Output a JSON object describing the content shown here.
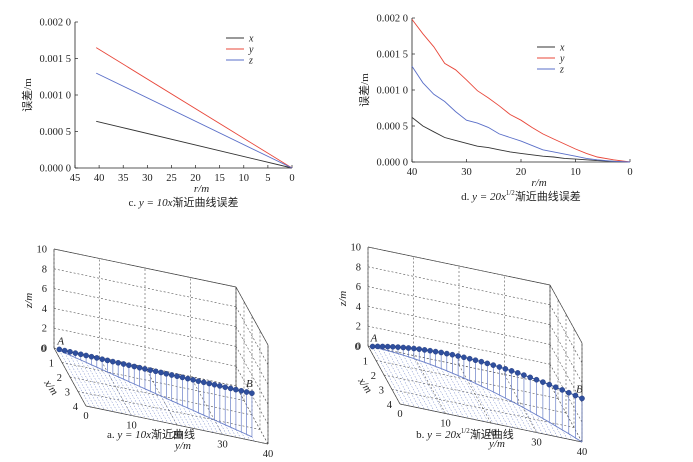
{
  "chart_data": [
    {
      "id": "c",
      "type": "line",
      "caption": "c. y = 10x 渐近曲线误差",
      "caption_prefix": "c. ",
      "caption_formula": "y = 10x",
      "caption_suffix": "渐近曲线误差",
      "xlabel": "r/m",
      "ylabel": "误差/m",
      "xlim": [
        45,
        0
      ],
      "ylim": [
        0,
        0.002
      ],
      "xticks": [
        "45",
        "40",
        "35",
        "30",
        "25",
        "20",
        "15",
        "10",
        "5",
        "0"
      ],
      "yticks": [
        "0.000 0",
        "0.000 5",
        "0.001 0",
        "0.001 5",
        "0.002 0"
      ],
      "legend": [
        "x",
        "y",
        "z"
      ],
      "series": [
        {
          "name": "x",
          "color": "#333333",
          "points": [
            [
              40.6,
              0.00064
            ],
            [
              0,
              0.0
            ]
          ]
        },
        {
          "name": "y",
          "color": "#e8473a",
          "points": [
            [
              40.6,
              0.00165
            ],
            [
              0,
              0.0
            ]
          ]
        },
        {
          "name": "z",
          "color": "#5a6fc8",
          "points": [
            [
              40.6,
              0.0013
            ],
            [
              0,
              0.0
            ]
          ]
        }
      ]
    },
    {
      "id": "d",
      "type": "line",
      "caption": "d. y = 20x^(1/2) 渐近曲线误差",
      "caption_prefix": "d. ",
      "caption_formula": "y = 20x",
      "caption_exponent": "1/2",
      "caption_suffix": "渐近曲线误差",
      "xlabel": "r/m",
      "ylabel": "误差/m",
      "xlim": [
        40,
        0
      ],
      "ylim": [
        0,
        0.002
      ],
      "xticks": [
        "40",
        "30",
        "20",
        "10",
        "0"
      ],
      "yticks": [
        "0.000 0",
        "0.000 5",
        "0.001 0",
        "0.001 5",
        "0.002 0"
      ],
      "legend": [
        "x",
        "y",
        "z"
      ],
      "series": [
        {
          "name": "x",
          "color": "#333333",
          "points": [
            [
              40,
              0.00062
            ],
            [
              38,
              0.0005
            ],
            [
              36,
              0.00042
            ],
            [
              34,
              0.00034
            ],
            [
              32,
              0.0003
            ],
            [
              30,
              0.00026
            ],
            [
              28,
              0.00022
            ],
            [
              26,
              0.0002
            ],
            [
              24,
              0.00017
            ],
            [
              22,
              0.00014
            ],
            [
              20,
              0.00012
            ],
            [
              18,
              0.0001
            ],
            [
              16,
              8e-05
            ],
            [
              14,
              7e-05
            ],
            [
              12,
              5e-05
            ],
            [
              10,
              4e-05
            ],
            [
              8,
              3e-05
            ],
            [
              6,
              2e-05
            ],
            [
              3,
              1e-05
            ],
            [
              0,
              0.0
            ]
          ]
        },
        {
          "name": "y",
          "color": "#e8473a",
          "points": [
            [
              40,
              0.00198
            ],
            [
              38,
              0.00178
            ],
            [
              36,
              0.0016
            ],
            [
              34,
              0.00137
            ],
            [
              32,
              0.00128
            ],
            [
              30,
              0.00114
            ],
            [
              28,
              0.00099
            ],
            [
              26,
              0.00089
            ],
            [
              24,
              0.00078
            ],
            [
              22,
              0.00066
            ],
            [
              20,
              0.00058
            ],
            [
              18,
              0.00048
            ],
            [
              16,
              0.00039
            ],
            [
              14,
              0.00032
            ],
            [
              12,
              0.00025
            ],
            [
              10,
              0.00018
            ],
            [
              8,
              0.00012
            ],
            [
              6,
              7e-05
            ],
            [
              3,
              3e-05
            ],
            [
              0,
              0.0
            ]
          ]
        },
        {
          "name": "z",
          "color": "#5a6fc8",
          "points": [
            [
              40,
              0.00133
            ],
            [
              38,
              0.0011
            ],
            [
              36,
              0.00094
            ],
            [
              34,
              0.00084
            ],
            [
              32,
              0.0007
            ],
            [
              30,
              0.00058
            ],
            [
              28,
              0.00054
            ],
            [
              26,
              0.00048
            ],
            [
              24,
              0.00039
            ],
            [
              22,
              0.00034
            ],
            [
              20,
              0.00029
            ],
            [
              18,
              0.00023
            ],
            [
              16,
              0.00017
            ],
            [
              14,
              0.00014
            ],
            [
              12,
              0.00011
            ],
            [
              10,
              8e-05
            ],
            [
              8,
              5e-05
            ],
            [
              6,
              3e-05
            ],
            [
              3,
              1e-05
            ],
            [
              0,
              0.0
            ]
          ]
        }
      ]
    },
    {
      "id": "a",
      "type": "scatter3d",
      "caption": "a. y = 10x 渐近曲线",
      "caption_prefix": "a. ",
      "caption_formula": "y = 10x",
      "caption_suffix": "渐近曲线",
      "xlabel": "x/m",
      "ylabel": "y/m",
      "zlabel": "z/m",
      "xlim": [
        0,
        4
      ],
      "ylim": [
        0,
        40
      ],
      "zlim": [
        0,
        10
      ],
      "xticks": [
        "0",
        "1",
        "2",
        "3",
        "4"
      ],
      "yticks": [
        "0",
        "10",
        "20",
        "30",
        "40"
      ],
      "zticks": [
        "0",
        "2",
        "4",
        "6",
        "8",
        "10"
      ],
      "point_labels": {
        "start": "A",
        "end": "B"
      },
      "curve": "y = 10x, z rises linearly to 4.4 m at B"
    },
    {
      "id": "b",
      "type": "scatter3d",
      "caption": "b. y = 20x^(1/2) 渐近曲线",
      "caption_prefix": "b. ",
      "caption_formula": "y = 20x",
      "caption_exponent": "1/2",
      "caption_suffix": "渐近曲线",
      "xlabel": "x/m",
      "ylabel": "y/m",
      "zlabel": "z/m",
      "xlim": [
        0,
        4
      ],
      "ylim": [
        0,
        40
      ],
      "zlim": [
        0,
        10
      ],
      "xticks": [
        "0",
        "1",
        "2",
        "3",
        "4"
      ],
      "yticks": [
        "0",
        "10",
        "20",
        "30",
        "40"
      ],
      "zticks": [
        "0",
        "2",
        "4",
        "6",
        "8",
        "10"
      ],
      "point_labels": {
        "start": "A",
        "end": "B"
      },
      "curve": "y = 20x^(1/2), z rises to 4.4 m at B"
    }
  ],
  "colors": {
    "x": "#333333",
    "y": "#e8473a",
    "z": "#5a6fc8",
    "points": "#2f4f9e"
  }
}
